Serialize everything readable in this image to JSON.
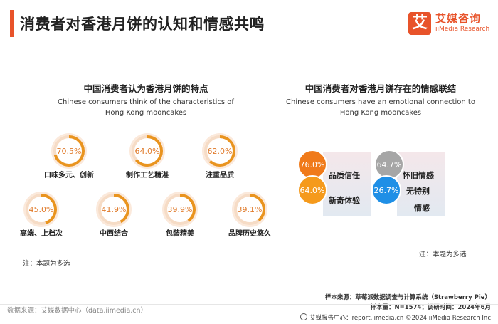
{
  "header": {
    "title": "消费者对香港月饼的认知和情感共鸣",
    "logo_mark": "艾",
    "logo_cn": "艾媒咨询",
    "logo_en": "iiMedia Research"
  },
  "left_panel": {
    "title": "中国消费者认为香港月饼的特点",
    "subtitle_line1": "Chinese consumers think of the characteristics of",
    "subtitle_line2": "Hong Kong mooncakes",
    "note": "注：本题为多选"
  },
  "right_panel": {
    "title": "中国消费者对香港月饼存在的情感联结",
    "subtitle_line1": "Chinese consumers have an emotional connection to",
    "subtitle_line2": "Hong Kong mooncakes",
    "note": "注：本题为多选"
  },
  "chart_data": [
    {
      "type": "bar",
      "title": "中国消费者认为香港月饼的特点",
      "subtitle": "Chinese consumers think of the characteristics of Hong Kong mooncakes",
      "unit": "%",
      "categories": [
        "口味多元、创新",
        "制作工艺精湛",
        "注重品质",
        "高端、上档次",
        "中西结合",
        "包装精美",
        "品牌历史悠久"
      ],
      "values": [
        70.5,
        64.0,
        62.0,
        45.0,
        41.9,
        39.9,
        39.1
      ],
      "labels": [
        "70.5%",
        "64.0%",
        "62.0%",
        "45.0%",
        "41.9%",
        "39.9%",
        "39.1%"
      ],
      "note": "注：本题为多选"
    },
    {
      "type": "bar",
      "title": "中国消费者对香港月饼存在的情感联结",
      "subtitle": "Chinese consumers have an emotional connection to Hong Kong mooncakes",
      "unit": "%",
      "categories": [
        "品质信任",
        "新奇体验",
        "怀旧情感",
        "无特别情感"
      ],
      "values": [
        76.0,
        64.0,
        64.7,
        26.7
      ],
      "labels": [
        "76.0%",
        "64.0%",
        "64.7%",
        "26.7%"
      ],
      "colors": [
        "#f07a1a",
        "#f59a1c",
        "#a6a6a6",
        "#1f8fe6"
      ],
      "note": "注：本题为多选"
    }
  ],
  "footer": {
    "source_left": "数据来源：艾媒数据中心（data.iimedia.cn）",
    "sample_source": "样本来源：草莓派数据调查与计算系统（Strawberry Pie）",
    "sample_size": "样本量：N=1574；调研时间：2024年6月",
    "report_site": "艾媒报告中心：report.iimedia.cn  ©2024  iiMedia Research  Inc"
  }
}
